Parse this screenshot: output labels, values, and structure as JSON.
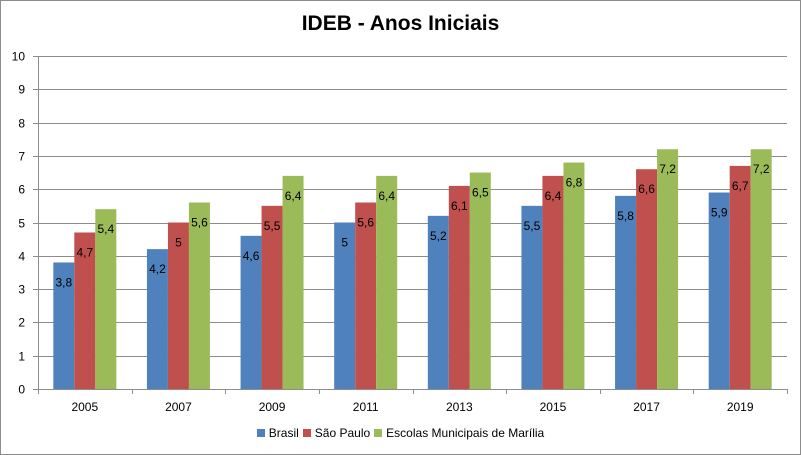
{
  "chart_data": {
    "type": "bar",
    "title": "IDEB - Anos Iniciais",
    "xlabel": "",
    "ylabel": "",
    "ylim": [
      0,
      10
    ],
    "yticks": [
      0,
      1,
      2,
      3,
      4,
      5,
      6,
      7,
      8,
      9,
      10
    ],
    "grid": true,
    "legend_position": "bottom",
    "categories": [
      "2005",
      "2007",
      "2009",
      "2011",
      "2013",
      "2015",
      "2017",
      "2019"
    ],
    "series": [
      {
        "name": "Brasil",
        "color": "#4f81bd",
        "values": [
          3.8,
          4.2,
          4.6,
          5,
          5.2,
          5.5,
          5.8,
          5.9
        ],
        "labels": [
          "3,8",
          "4,2",
          "4,6",
          "5",
          "5,2",
          "5,5",
          "5,8",
          "5,9"
        ]
      },
      {
        "name": "São Paulo",
        "color": "#c0504d",
        "values": [
          4.7,
          5,
          5.5,
          5.6,
          6.1,
          6.4,
          6.6,
          6.7
        ],
        "labels": [
          "4,7",
          "5",
          "5,5",
          "5,6",
          "6,1",
          "6,4",
          "6,6",
          "6,7"
        ]
      },
      {
        "name": "Escolas Municipais de Marília",
        "color": "#9bbb59",
        "values": [
          5.4,
          5.6,
          6.4,
          6.4,
          6.5,
          6.8,
          7.2,
          7.2
        ],
        "labels": [
          "5,4",
          "5,6",
          "6,4",
          "6,4",
          "6,5",
          "6,8",
          "7,2",
          "7,2"
        ]
      }
    ]
  }
}
